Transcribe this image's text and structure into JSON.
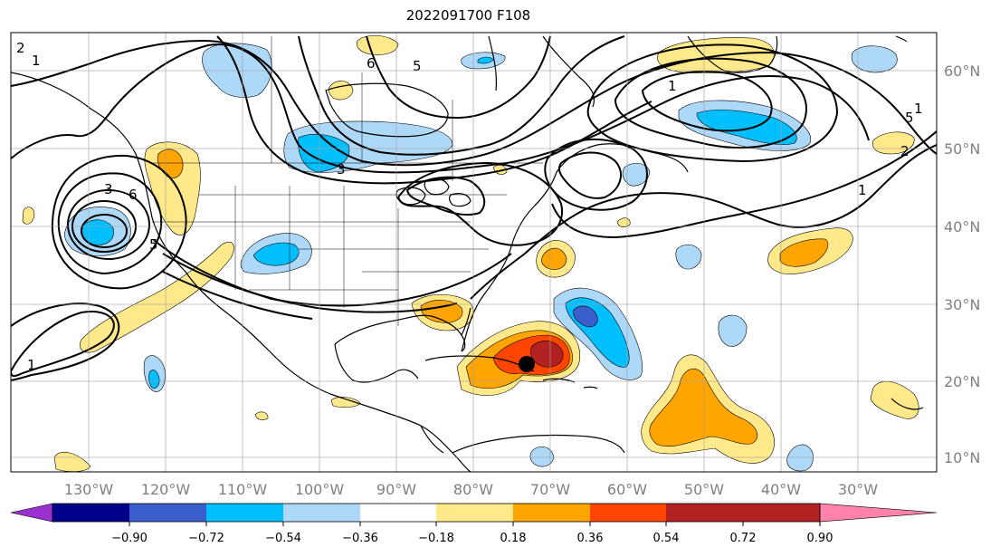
{
  "title": "2022091700 F108",
  "lon_labels": [
    "130°W",
    "120°W",
    "110°W",
    "100°W",
    "90°W",
    "80°W",
    "70°W",
    "60°W",
    "50°W",
    "40°W",
    "30°W"
  ],
  "lat_labels": [
    "60°N",
    "50°N",
    "40°N",
    "30°N",
    "20°N",
    "10°N"
  ],
  "colorbar": {
    "ticks": [
      "−0.90",
      "−0.72",
      "−0.54",
      "−0.36",
      "−0.18",
      "0.18",
      "0.36",
      "0.54",
      "0.72",
      "0.90"
    ],
    "colors": [
      "#9b30d0",
      "#00008b",
      "#3a5fcd",
      "#00bfff",
      "#add8f7",
      "#ffffff",
      "#ffe98a",
      "#ffa500",
      "#ff4500",
      "#b22222",
      "#ff82ab"
    ]
  },
  "contour_labels": [
    "2",
    "1",
    "3",
    "6",
    "5",
    "1",
    "5",
    "6",
    "2",
    "1",
    "3",
    "5",
    "1",
    "1"
  ],
  "marker": "storm-center-dot"
}
